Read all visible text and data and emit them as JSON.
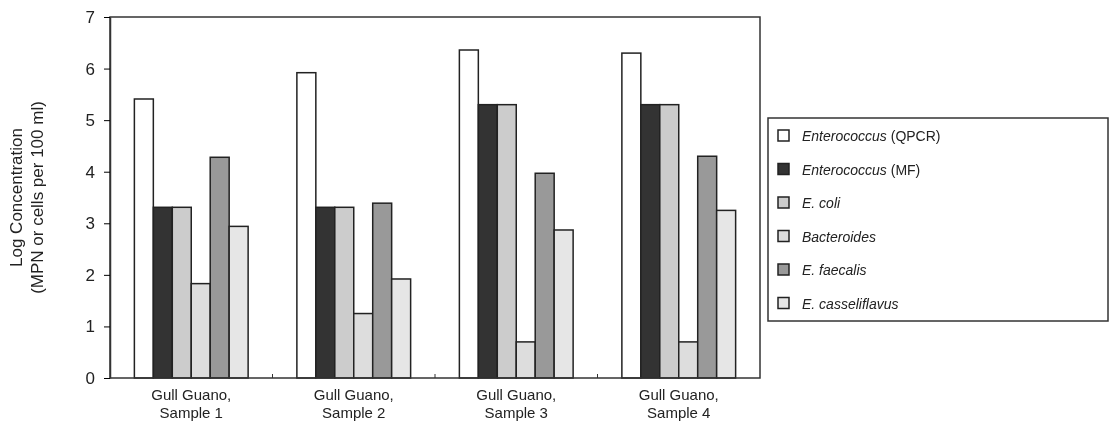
{
  "chart_data": {
    "type": "bar",
    "ylabel": "Log Concentration\n(MPN or cells per 100 ml)",
    "categories": [
      "Gull Guano,\nSample 1",
      "Gull Guano,\nSample 2",
      "Gull Guano,\nSample 3",
      "Gull Guano,\nSample 4"
    ],
    "series": [
      {
        "name": "Enterococcus (QPCR)",
        "color": "#ffffff",
        "values": [
          5.41,
          5.92,
          6.36,
          6.3
        ]
      },
      {
        "name": "Enterococcus (MF)",
        "color": "#333333",
        "values": [
          3.31,
          3.31,
          5.3,
          5.3
        ]
      },
      {
        "name": "E. coli",
        "color": "#cccccc",
        "values": [
          3.31,
          3.31,
          5.3,
          5.3
        ]
      },
      {
        "name": "Bacteroides",
        "color": "#dddddd",
        "values": [
          1.83,
          1.25,
          0.7,
          0.7
        ]
      },
      {
        "name": "E. faecalis",
        "color": "#999999",
        "values": [
          4.28,
          3.39,
          3.97,
          4.3
        ]
      },
      {
        "name": "E. casseliflavus",
        "color": "#e6e6e6",
        "values": [
          2.94,
          1.92,
          2.87,
          3.25
        ]
      }
    ],
    "ylim": [
      0,
      7
    ],
    "yticks": [
      0,
      1,
      2,
      3,
      4,
      5,
      6,
      7
    ],
    "grid": false,
    "legend": "right"
  }
}
